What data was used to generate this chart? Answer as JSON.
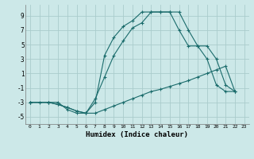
{
  "xlabel": "Humidex (Indice chaleur)",
  "background_color": "#cce8e8",
  "grid_color": "#aacccc",
  "line_color": "#1a6b6b",
  "xlim": [
    -0.5,
    23.5
  ],
  "ylim": [
    -6,
    10.5
  ],
  "xticks": [
    0,
    1,
    2,
    3,
    4,
    5,
    6,
    7,
    8,
    9,
    10,
    11,
    12,
    13,
    14,
    15,
    16,
    17,
    18,
    19,
    20,
    21,
    22,
    23
  ],
  "yticks": [
    -5,
    -3,
    -1,
    1,
    3,
    5,
    7,
    9
  ],
  "line1_x": [
    0,
    1,
    2,
    3,
    4,
    5,
    6,
    7,
    8,
    9,
    10,
    11,
    12,
    13,
    14,
    15,
    16,
    17,
    18,
    19,
    20,
    21,
    22
  ],
  "line1_y": [
    -3,
    -3,
    -3,
    -3,
    -4,
    -4.5,
    -4.5,
    -4.5,
    -4.0,
    -3.5,
    -3.0,
    -2.5,
    -2.0,
    -1.5,
    -1.2,
    -0.8,
    -0.4,
    0.0,
    0.5,
    1.0,
    1.5,
    2.0,
    -1.5
  ],
  "line2_x": [
    0,
    2,
    3,
    4,
    5,
    6,
    7,
    8,
    9,
    10,
    11,
    12,
    13,
    14,
    15,
    16,
    17,
    18,
    19,
    20,
    21,
    22
  ],
  "line2_y": [
    -3,
    -3,
    -3.3,
    -3.7,
    -4.2,
    -4.5,
    -3.0,
    3.5,
    6.0,
    7.5,
    8.3,
    9.5,
    9.5,
    9.5,
    9.5,
    9.5,
    7.0,
    4.8,
    4.8,
    3.0,
    -0.6,
    -1.5
  ],
  "line3_x": [
    0,
    2,
    3,
    4,
    5,
    6,
    7,
    8,
    9,
    10,
    11,
    12,
    13,
    14,
    15,
    16,
    17,
    18,
    19,
    20,
    21,
    22
  ],
  "line3_y": [
    -3,
    -3,
    -3.3,
    -3.7,
    -4.2,
    -4.5,
    -2.5,
    0.5,
    3.5,
    5.5,
    7.3,
    8.0,
    9.5,
    9.5,
    9.5,
    7.0,
    4.8,
    4.8,
    3.0,
    -0.6,
    -1.5,
    -1.5
  ]
}
